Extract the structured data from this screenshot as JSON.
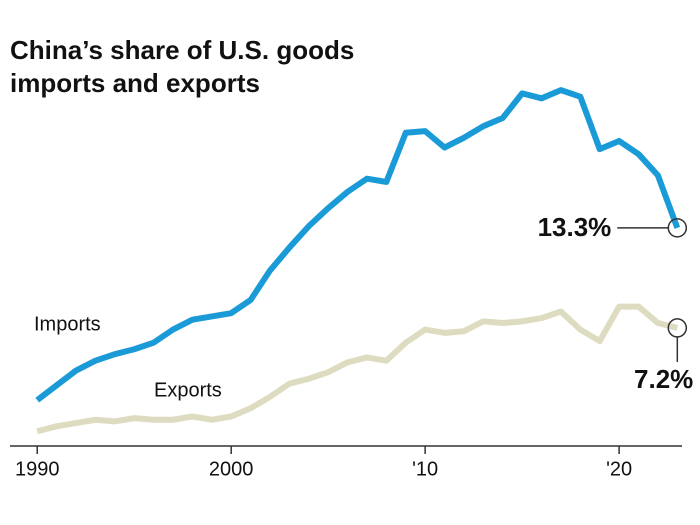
{
  "chart_data": {
    "type": "line",
    "title": "China’s share of U.S. goods imports and exports",
    "x": [
      1990,
      1991,
      1992,
      1993,
      1994,
      1995,
      1996,
      1997,
      1998,
      1999,
      2000,
      2001,
      2002,
      2003,
      2004,
      2005,
      2006,
      2007,
      2008,
      2009,
      2010,
      2011,
      2012,
      2013,
      2014,
      2015,
      2016,
      2017,
      2018,
      2019,
      2020,
      2021,
      2022,
      2023
    ],
    "series": [
      {
        "name": "Imports",
        "color": "#1a9bd7",
        "values": [
          2.8,
          3.7,
          4.6,
          5.2,
          5.6,
          5.9,
          6.3,
          7.1,
          7.7,
          7.9,
          8.1,
          8.9,
          10.7,
          12.1,
          13.4,
          14.5,
          15.5,
          16.3,
          16.1,
          19.1,
          19.2,
          18.2,
          18.8,
          19.5,
          20.0,
          21.5,
          21.2,
          21.7,
          21.3,
          18.1,
          18.6,
          17.8,
          16.5,
          13.3
        ],
        "value_labels": [
          null,
          null,
          null,
          null,
          null,
          null,
          null,
          null,
          null,
          null,
          null,
          null,
          null,
          null,
          null,
          null,
          null,
          null,
          null,
          null,
          null,
          null,
          null,
          null,
          null,
          null,
          null,
          null,
          null,
          null,
          null,
          null,
          null,
          "13.3%"
        ]
      },
      {
        "name": "Exports",
        "color": "#dedcc0",
        "values": [
          0.9,
          1.2,
          1.4,
          1.6,
          1.5,
          1.7,
          1.6,
          1.6,
          1.8,
          1.6,
          1.8,
          2.3,
          3.0,
          3.8,
          4.1,
          4.5,
          5.1,
          5.4,
          5.2,
          6.3,
          7.1,
          6.9,
          7.0,
          7.6,
          7.5,
          7.6,
          7.8,
          8.2,
          7.1,
          6.4,
          8.5,
          8.5,
          7.5,
          7.2
        ],
        "value_labels": [
          null,
          null,
          null,
          null,
          null,
          null,
          null,
          null,
          null,
          null,
          null,
          null,
          null,
          null,
          null,
          null,
          null,
          null,
          null,
          null,
          null,
          null,
          null,
          null,
          null,
          null,
          null,
          null,
          null,
          null,
          null,
          null,
          null,
          "7.2%"
        ]
      }
    ],
    "xlim": [
      1988.7,
      2023.5
    ],
    "xticks": [
      1990,
      2000,
      {
        "value": 2010,
        "label": "'10"
      },
      {
        "value": 2020,
        "label": "'20"
      }
    ],
    "ylim": [
      0,
      25
    ]
  }
}
